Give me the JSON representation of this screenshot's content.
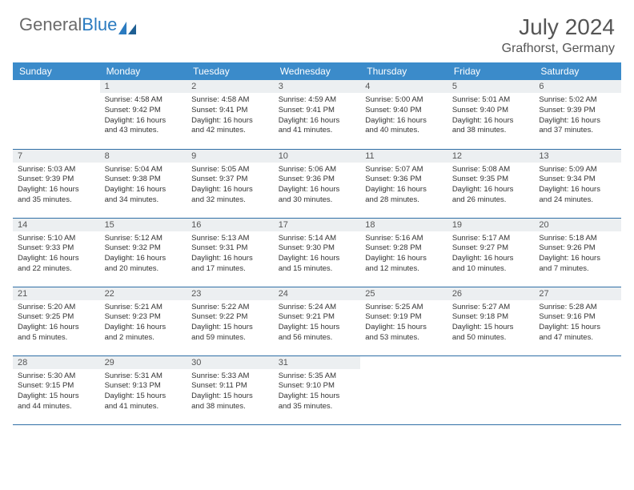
{
  "logo": {
    "text_gray": "General",
    "text_blue": "Blue"
  },
  "title": "July 2024",
  "location": "Grafhorst, Germany",
  "colors": {
    "header_bg": "#3b8bca",
    "header_text": "#ffffff",
    "daynum_bg": "#eceff1",
    "row_border": "#2f6fa6",
    "logo_gray": "#6a6a6a",
    "logo_blue": "#2b7bc0"
  },
  "weekdays": [
    "Sunday",
    "Monday",
    "Tuesday",
    "Wednesday",
    "Thursday",
    "Friday",
    "Saturday"
  ],
  "weeks": [
    [
      {
        "n": "",
        "lines": [
          "",
          "",
          "",
          ""
        ]
      },
      {
        "n": "1",
        "lines": [
          "Sunrise: 4:58 AM",
          "Sunset: 9:42 PM",
          "Daylight: 16 hours",
          "and 43 minutes."
        ]
      },
      {
        "n": "2",
        "lines": [
          "Sunrise: 4:58 AM",
          "Sunset: 9:41 PM",
          "Daylight: 16 hours",
          "and 42 minutes."
        ]
      },
      {
        "n": "3",
        "lines": [
          "Sunrise: 4:59 AM",
          "Sunset: 9:41 PM",
          "Daylight: 16 hours",
          "and 41 minutes."
        ]
      },
      {
        "n": "4",
        "lines": [
          "Sunrise: 5:00 AM",
          "Sunset: 9:40 PM",
          "Daylight: 16 hours",
          "and 40 minutes."
        ]
      },
      {
        "n": "5",
        "lines": [
          "Sunrise: 5:01 AM",
          "Sunset: 9:40 PM",
          "Daylight: 16 hours",
          "and 38 minutes."
        ]
      },
      {
        "n": "6",
        "lines": [
          "Sunrise: 5:02 AM",
          "Sunset: 9:39 PM",
          "Daylight: 16 hours",
          "and 37 minutes."
        ]
      }
    ],
    [
      {
        "n": "7",
        "lines": [
          "Sunrise: 5:03 AM",
          "Sunset: 9:39 PM",
          "Daylight: 16 hours",
          "and 35 minutes."
        ]
      },
      {
        "n": "8",
        "lines": [
          "Sunrise: 5:04 AM",
          "Sunset: 9:38 PM",
          "Daylight: 16 hours",
          "and 34 minutes."
        ]
      },
      {
        "n": "9",
        "lines": [
          "Sunrise: 5:05 AM",
          "Sunset: 9:37 PM",
          "Daylight: 16 hours",
          "and 32 minutes."
        ]
      },
      {
        "n": "10",
        "lines": [
          "Sunrise: 5:06 AM",
          "Sunset: 9:36 PM",
          "Daylight: 16 hours",
          "and 30 minutes."
        ]
      },
      {
        "n": "11",
        "lines": [
          "Sunrise: 5:07 AM",
          "Sunset: 9:36 PM",
          "Daylight: 16 hours",
          "and 28 minutes."
        ]
      },
      {
        "n": "12",
        "lines": [
          "Sunrise: 5:08 AM",
          "Sunset: 9:35 PM",
          "Daylight: 16 hours",
          "and 26 minutes."
        ]
      },
      {
        "n": "13",
        "lines": [
          "Sunrise: 5:09 AM",
          "Sunset: 9:34 PM",
          "Daylight: 16 hours",
          "and 24 minutes."
        ]
      }
    ],
    [
      {
        "n": "14",
        "lines": [
          "Sunrise: 5:10 AM",
          "Sunset: 9:33 PM",
          "Daylight: 16 hours",
          "and 22 minutes."
        ]
      },
      {
        "n": "15",
        "lines": [
          "Sunrise: 5:12 AM",
          "Sunset: 9:32 PM",
          "Daylight: 16 hours",
          "and 20 minutes."
        ]
      },
      {
        "n": "16",
        "lines": [
          "Sunrise: 5:13 AM",
          "Sunset: 9:31 PM",
          "Daylight: 16 hours",
          "and 17 minutes."
        ]
      },
      {
        "n": "17",
        "lines": [
          "Sunrise: 5:14 AM",
          "Sunset: 9:30 PM",
          "Daylight: 16 hours",
          "and 15 minutes."
        ]
      },
      {
        "n": "18",
        "lines": [
          "Sunrise: 5:16 AM",
          "Sunset: 9:28 PM",
          "Daylight: 16 hours",
          "and 12 minutes."
        ]
      },
      {
        "n": "19",
        "lines": [
          "Sunrise: 5:17 AM",
          "Sunset: 9:27 PM",
          "Daylight: 16 hours",
          "and 10 minutes."
        ]
      },
      {
        "n": "20",
        "lines": [
          "Sunrise: 5:18 AM",
          "Sunset: 9:26 PM",
          "Daylight: 16 hours",
          "and 7 minutes."
        ]
      }
    ],
    [
      {
        "n": "21",
        "lines": [
          "Sunrise: 5:20 AM",
          "Sunset: 9:25 PM",
          "Daylight: 16 hours",
          "and 5 minutes."
        ]
      },
      {
        "n": "22",
        "lines": [
          "Sunrise: 5:21 AM",
          "Sunset: 9:23 PM",
          "Daylight: 16 hours",
          "and 2 minutes."
        ]
      },
      {
        "n": "23",
        "lines": [
          "Sunrise: 5:22 AM",
          "Sunset: 9:22 PM",
          "Daylight: 15 hours",
          "and 59 minutes."
        ]
      },
      {
        "n": "24",
        "lines": [
          "Sunrise: 5:24 AM",
          "Sunset: 9:21 PM",
          "Daylight: 15 hours",
          "and 56 minutes."
        ]
      },
      {
        "n": "25",
        "lines": [
          "Sunrise: 5:25 AM",
          "Sunset: 9:19 PM",
          "Daylight: 15 hours",
          "and 53 minutes."
        ]
      },
      {
        "n": "26",
        "lines": [
          "Sunrise: 5:27 AM",
          "Sunset: 9:18 PM",
          "Daylight: 15 hours",
          "and 50 minutes."
        ]
      },
      {
        "n": "27",
        "lines": [
          "Sunrise: 5:28 AM",
          "Sunset: 9:16 PM",
          "Daylight: 15 hours",
          "and 47 minutes."
        ]
      }
    ],
    [
      {
        "n": "28",
        "lines": [
          "Sunrise: 5:30 AM",
          "Sunset: 9:15 PM",
          "Daylight: 15 hours",
          "and 44 minutes."
        ]
      },
      {
        "n": "29",
        "lines": [
          "Sunrise: 5:31 AM",
          "Sunset: 9:13 PM",
          "Daylight: 15 hours",
          "and 41 minutes."
        ]
      },
      {
        "n": "30",
        "lines": [
          "Sunrise: 5:33 AM",
          "Sunset: 9:11 PM",
          "Daylight: 15 hours",
          "and 38 minutes."
        ]
      },
      {
        "n": "31",
        "lines": [
          "Sunrise: 5:35 AM",
          "Sunset: 9:10 PM",
          "Daylight: 15 hours",
          "and 35 minutes."
        ]
      },
      {
        "n": "",
        "lines": [
          "",
          "",
          "",
          ""
        ]
      },
      {
        "n": "",
        "lines": [
          "",
          "",
          "",
          ""
        ]
      },
      {
        "n": "",
        "lines": [
          "",
          "",
          "",
          ""
        ]
      }
    ]
  ]
}
